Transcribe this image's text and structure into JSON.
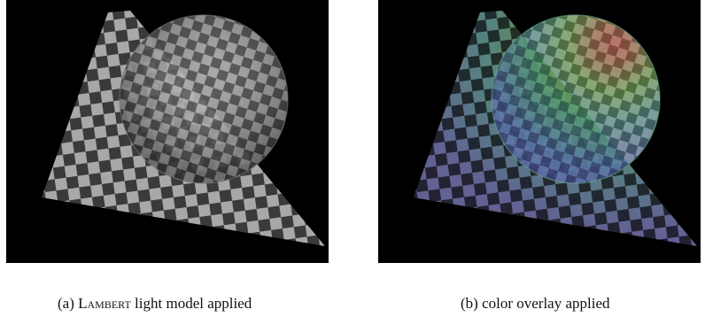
{
  "figure": {
    "panel_a": {
      "caption_prefix": "(a) ",
      "caption_smallcaps": "Lambert",
      "caption_rest": " light model applied",
      "image_desc_icon": "checker-sphere-grayscale"
    },
    "panel_b": {
      "caption": "(b) color overlay applied",
      "image_desc_icon": "checker-sphere-color-overlay"
    }
  },
  "colors": {
    "background": "#000000",
    "checker_light": "#a8a8a8",
    "checker_dark": "#3a3a3a",
    "overlay_cold": "#5a5acf",
    "overlay_mid": "#3fa9a0",
    "overlay_warm": "#6bbf3a",
    "overlay_hot": "#d24a3a"
  }
}
